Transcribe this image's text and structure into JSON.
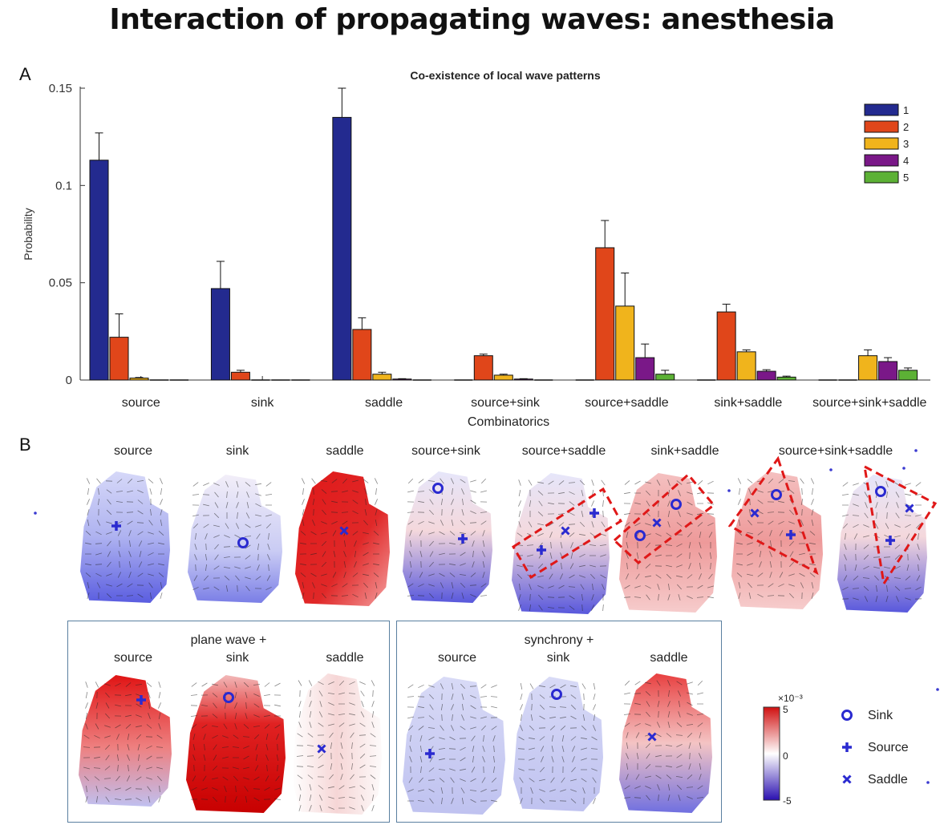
{
  "slide_title": "Interaction of propagating waves: anesthesia",
  "panel_a_letter": "A",
  "panel_b_letter": "B",
  "chart_data": {
    "type": "bar",
    "title": "Co-existence of local wave patterns",
    "xlabel": "Combinatorics",
    "ylabel": "Probability",
    "ylim": [
      0,
      0.15
    ],
    "yticks": [
      "0",
      "0.05",
      "0.1",
      "0.15"
    ],
    "grid": false,
    "legend_position": "top-right",
    "categories": [
      "source",
      "sink",
      "saddle",
      "source+sink",
      "source+saddle",
      "sink+saddle",
      "source+sink+saddle"
    ],
    "series": [
      {
        "name": "1",
        "color": "#232a8f",
        "values": [
          0.113,
          0.047,
          0.135,
          0.0,
          0.0,
          0.0,
          0.0
        ],
        "errors": [
          0.014,
          0.014,
          0.015,
          0.0,
          0.0,
          0.0,
          0.0
        ]
      },
      {
        "name": "2",
        "color": "#e0461a",
        "values": [
          0.022,
          0.004,
          0.026,
          0.0125,
          0.068,
          0.035,
          0.0
        ],
        "errors": [
          0.012,
          0.001,
          0.006,
          0.0008,
          0.014,
          0.004,
          0.0
        ]
      },
      {
        "name": "3",
        "color": "#f0b41c",
        "values": [
          0.001,
          0.0,
          0.003,
          0.0025,
          0.038,
          0.0145,
          0.0125
        ],
        "errors": [
          0.0003,
          0.0,
          0.001,
          0.0005,
          0.017,
          0.001,
          0.003
        ]
      },
      {
        "name": "4",
        "color": "#7a1888",
        "values": [
          0.0,
          0.0,
          0.0005,
          0.0005,
          0.0115,
          0.0045,
          0.0095
        ],
        "errors": [
          0.0,
          0.0,
          0.0002,
          0.0002,
          0.007,
          0.0008,
          0.002
        ]
      },
      {
        "name": "5",
        "color": "#5cb135",
        "values": [
          0.0,
          0.0,
          0.0,
          0.0,
          0.003,
          0.0015,
          0.005
        ],
        "errors": [
          0.0,
          0.0,
          0.0,
          0.0,
          0.002,
          0.0005,
          0.0012
        ]
      }
    ]
  },
  "panel_b": {
    "top_row_labels": [
      "source",
      "sink",
      "saddle",
      "source+sink",
      "source+saddle",
      "sink+saddle",
      "source+sink+saddle"
    ],
    "plane_wave": {
      "title": "plane wave +",
      "labels": [
        "source",
        "sink",
        "saddle"
      ]
    },
    "synchrony": {
      "title": "synchrony +",
      "labels": [
        "source",
        "sink",
        "saddle"
      ]
    },
    "colorbar": {
      "exponent": "×10⁻³",
      "ticks": [
        "5",
        "0",
        "-5"
      ],
      "colors": [
        "#d01010",
        "#ffffff",
        "#2a10b0"
      ]
    },
    "markers_legend": [
      {
        "symbol": "circle",
        "label": "Sink"
      },
      {
        "symbol": "plus",
        "label": "Source"
      },
      {
        "symbol": "cross",
        "label": "Saddle"
      }
    ],
    "marker_color": "#2a2ad0"
  }
}
